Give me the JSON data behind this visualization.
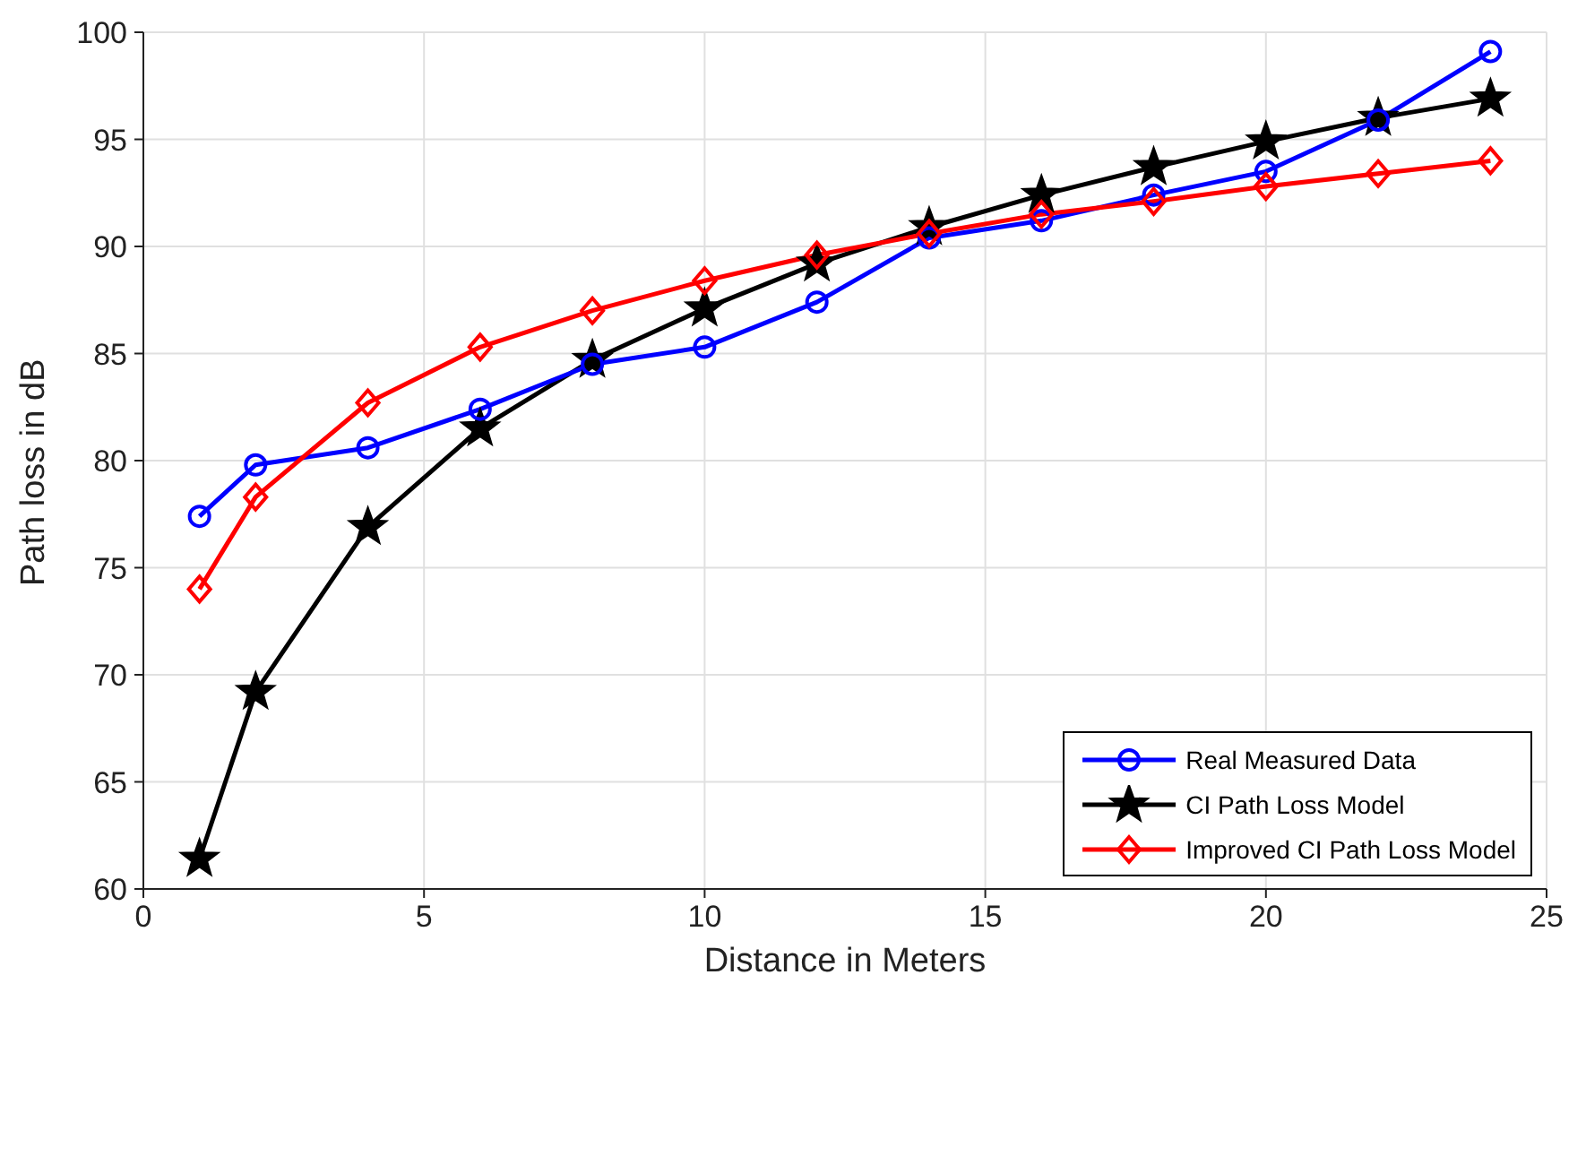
{
  "chart_data": {
    "type": "line",
    "xlabel": "Distance in Meters",
    "ylabel": "Path loss in dB",
    "x": [
      1,
      2,
      4,
      6,
      8,
      10,
      12,
      14,
      16,
      18,
      20,
      22,
      24
    ],
    "series": [
      {
        "name": "Real Measured Data",
        "color": "#0000ff",
        "marker": "circle",
        "values": [
          77.4,
          79.8,
          80.6,
          82.4,
          84.5,
          85.3,
          87.4,
          90.4,
          91.2,
          92.4,
          93.5,
          95.9,
          99.1
        ]
      },
      {
        "name": "CI Path Loss Model",
        "color": "#000000",
        "marker": "star",
        "values": [
          61.4,
          69.2,
          76.9,
          81.5,
          84.7,
          87.1,
          89.2,
          90.9,
          92.4,
          93.7,
          94.9,
          96.0,
          96.9
        ]
      },
      {
        "name": "Improved CI Path Loss Model",
        "color": "#ff0000",
        "marker": "diamond",
        "values": [
          74.0,
          78.3,
          82.7,
          85.3,
          87.0,
          88.4,
          89.6,
          90.6,
          91.5,
          92.1,
          92.8,
          93.4,
          94.0
        ]
      }
    ],
    "xlim": [
      0,
      25
    ],
    "xticks": [
      0,
      5,
      10,
      15,
      20,
      25
    ],
    "ylim": [
      60,
      100
    ],
    "yticks": [
      60,
      65,
      70,
      75,
      80,
      85,
      90,
      95,
      100
    ],
    "grid": true,
    "legend": "bottom right",
    "line_style": "solid"
  }
}
